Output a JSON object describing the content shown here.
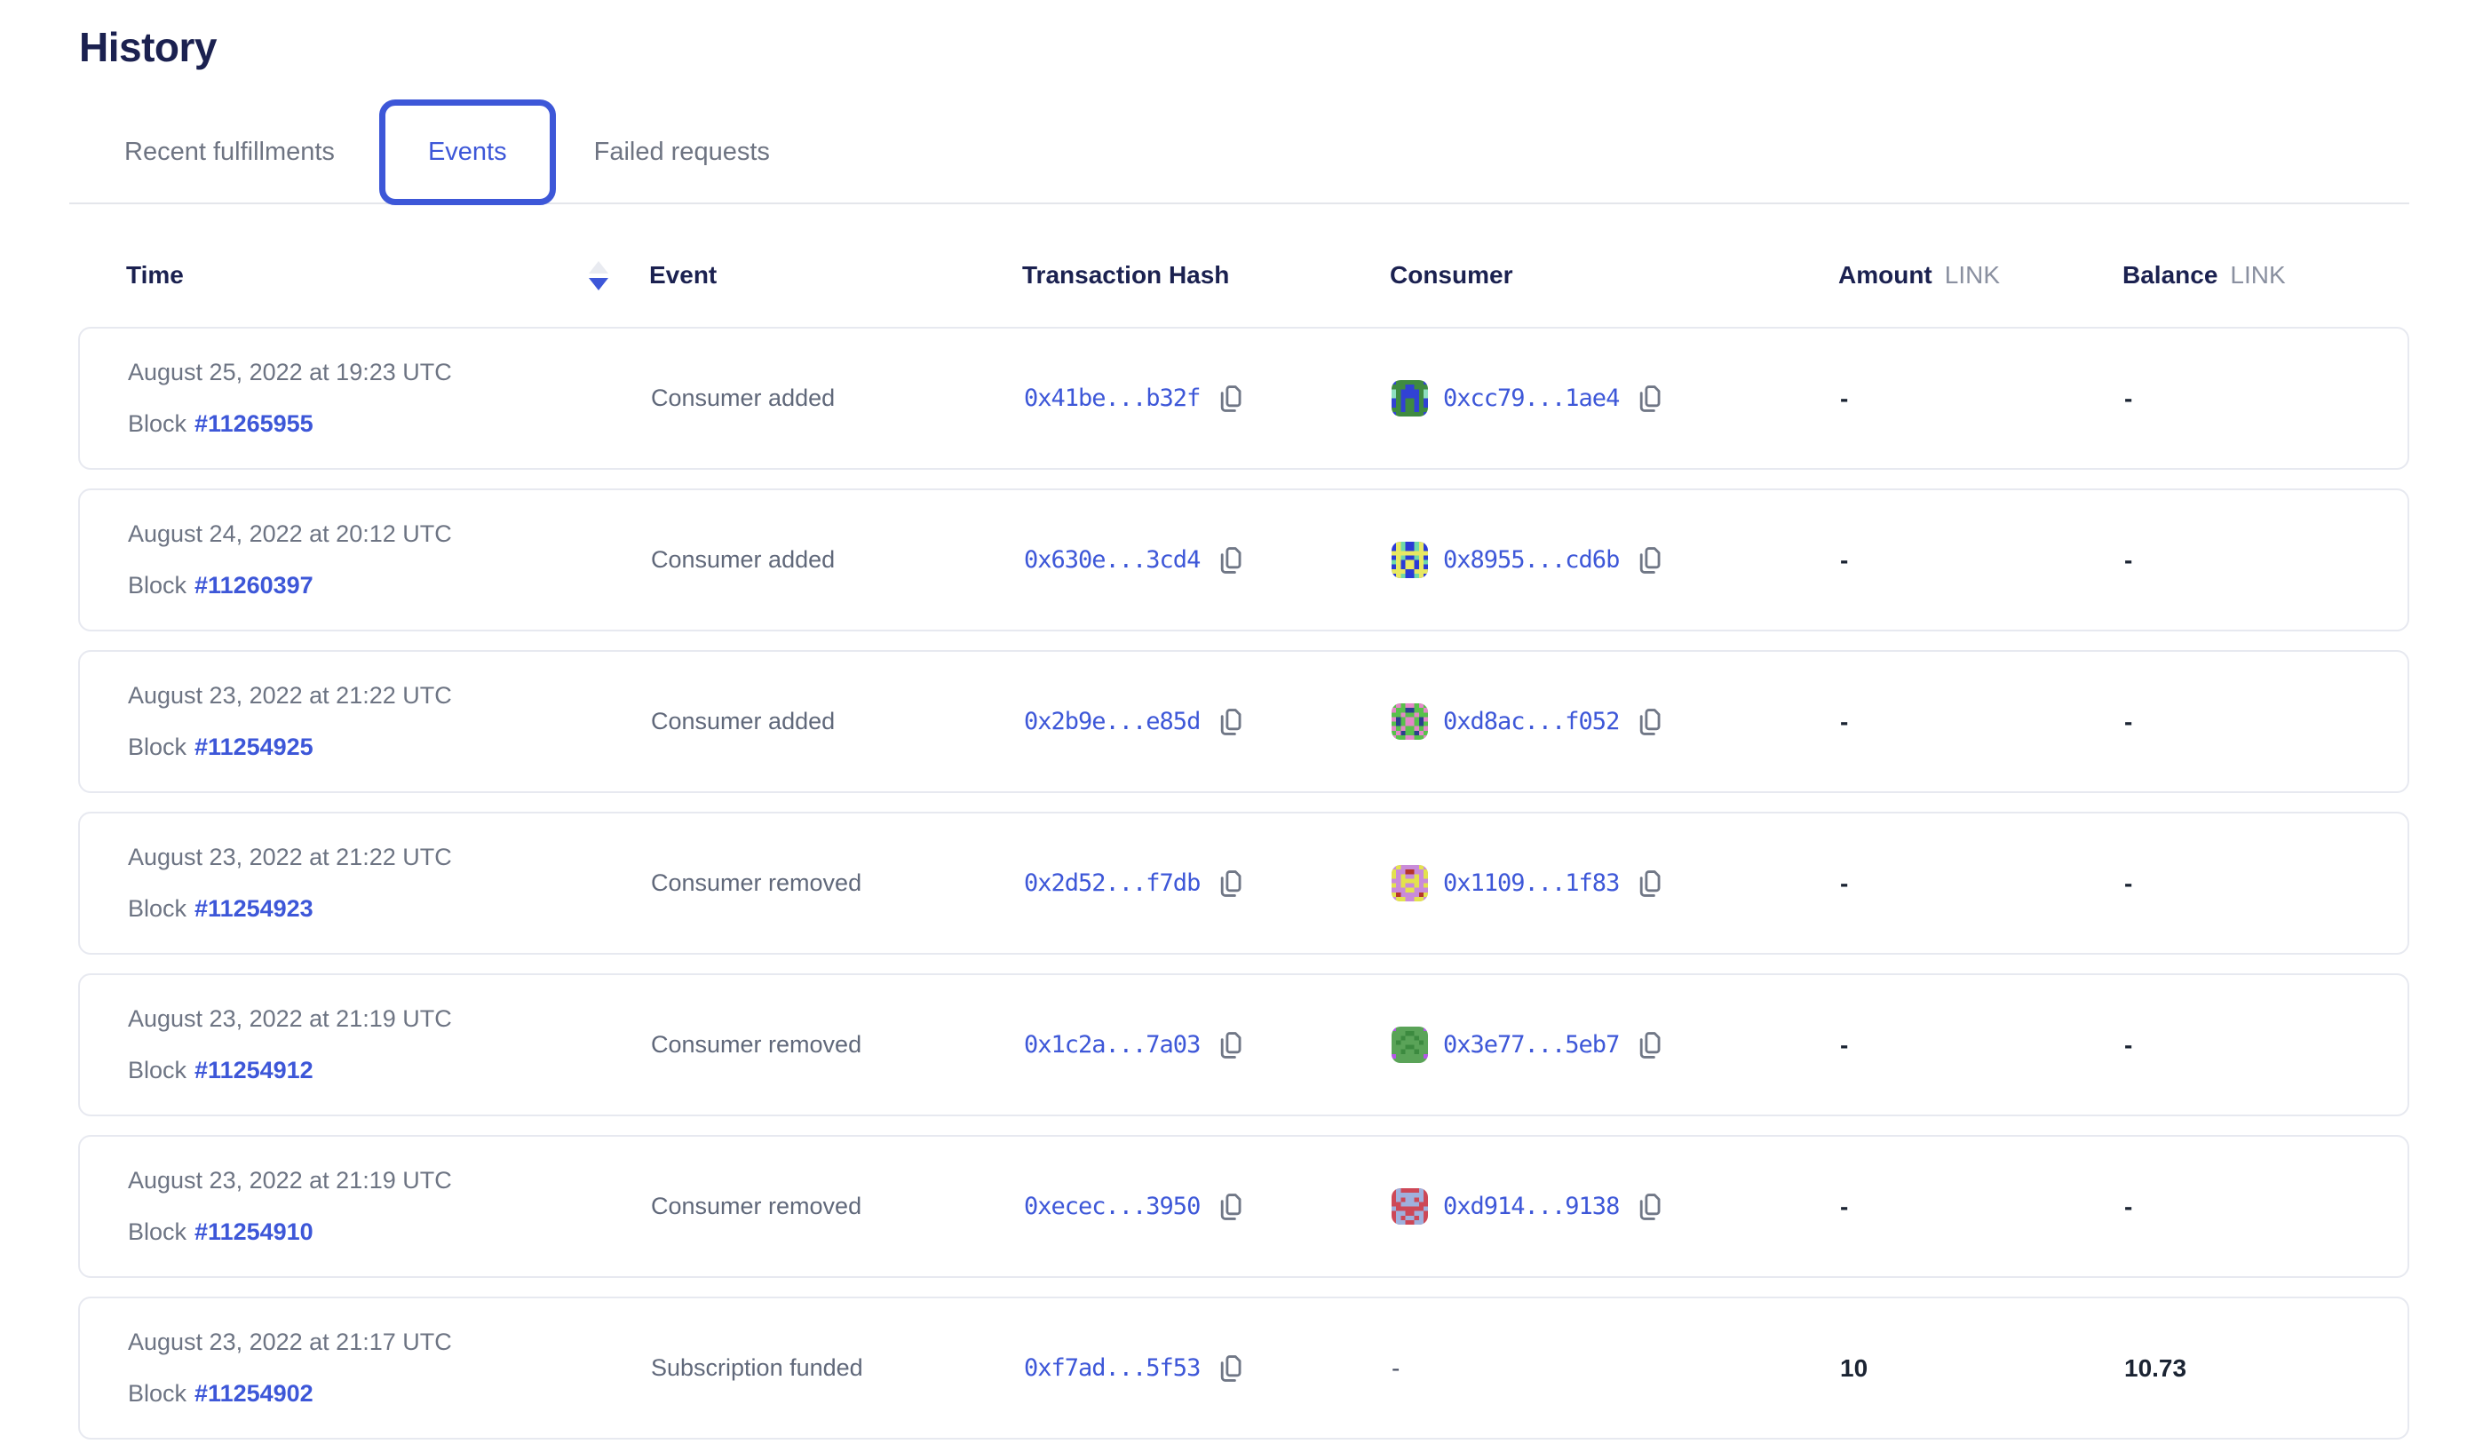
{
  "page": {
    "title": "History"
  },
  "tabs": [
    {
      "label": "Recent fulfillments",
      "active": false
    },
    {
      "label": "Events",
      "active": true
    },
    {
      "label": "Failed requests",
      "active": false
    }
  ],
  "colors": {
    "accent_blue": "#3d57d8",
    "heading_navy": "#1b2150",
    "muted_gray": "#6d7483",
    "card_border": "#e7e9f0"
  },
  "icons": {
    "sort": "sort-toggle-icon (up gray / down blue, descending active)",
    "copy": "copy-icon (two overlapping pages)"
  },
  "table": {
    "columns": {
      "time": "Time",
      "event": "Event",
      "tx": "Transaction Hash",
      "consumer": "Consumer",
      "amount": "Amount",
      "balance": "Balance",
      "unit": "LINK"
    },
    "sort": {
      "column": "Time",
      "direction": "desc"
    },
    "block_label": "Block",
    "rows": [
      {
        "time": "August 25, 2022 at 19:23 UTC",
        "block": "#11265955",
        "event": "Consumer added",
        "tx_hash": "0x41be...b32f",
        "consumer": "0xcc79...1ae4",
        "consumer_avatar": {
          "bg": "#3f8b41",
          "fg": "#3142d4",
          "spot": "#8fdfc0",
          "pattern": [
            "10000001",
            "00011000",
            "20111102",
            "20111102",
            "10100101",
            "10100101",
            "00100100",
            "10000001"
          ]
        },
        "amount": "-",
        "balance": "-"
      },
      {
        "time": "August 24, 2022 at 20:12 UTC",
        "block": "#11260397",
        "event": "Consumer added",
        "tx_hash": "0x630e...3cd4",
        "consumer": "0x8955...cd6b",
        "consumer_avatar": {
          "bg": "#2b3bd6",
          "fg": "#e8e863",
          "spot": "#6fd9a9",
          "pattern": [
            "01200210",
            "01200210",
            "11111111",
            "01200210",
            "21011012",
            "01011010",
            "11100111",
            "01200210"
          ]
        },
        "amount": "-",
        "balance": "-"
      },
      {
        "time": "August 23, 2022 at 21:22 UTC",
        "block": "#11254925",
        "event": "Consumer added",
        "tx_hash": "0x2b9e...e85d",
        "consumer": "0xd8ac...f052",
        "consumer_avatar": {
          "bg": "#58c14b",
          "fg": "#e487c8",
          "spot": "#2b3f8e",
          "pattern": [
            "01011010",
            "10022001",
            "00100100",
            "12011021",
            "02011020",
            "10100101",
            "01200210",
            "10011001"
          ]
        },
        "amount": "-",
        "balance": "-"
      },
      {
        "time": "August 23, 2022 at 21:22 UTC",
        "block": "#11254923",
        "event": "Consumer removed",
        "tx_hash": "0x2d52...f7db",
        "consumer": "0x1109...1f83",
        "consumer_avatar": {
          "bg": "#c98bd9",
          "fg": "#e3e24e",
          "spot": "#b5372a",
          "pattern": [
            "01000010",
            "10022001",
            "10100101",
            "00111100",
            "10100101",
            "00011000",
            "12000021",
            "01100110"
          ]
        },
        "amount": "-",
        "balance": "-"
      },
      {
        "time": "August 23, 2022 at 21:19 UTC",
        "block": "#11254912",
        "event": "Consumer removed",
        "tx_hash": "0x1c2a...7a03",
        "consumer": "0x3e77...5eb7",
        "consumer_avatar": {
          "bg": "#5aa358",
          "fg": "#b556e8",
          "spot": "#3c8a3f",
          "pattern": [
            "10000001",
            "00022000",
            "00200200",
            "02000020",
            "00022000",
            "00200200",
            "10000001",
            "00000000"
          ]
        },
        "amount": "-",
        "balance": "-"
      },
      {
        "time": "August 23, 2022 at 21:19 UTC",
        "block": "#11254910",
        "event": "Consumer removed",
        "tx_hash": "0xecec...3950",
        "consumer": "0xd914...9138",
        "consumer_avatar": {
          "bg": "#cd4857",
          "fg": "#9fb0dd",
          "spot": "#e08894",
          "pattern": [
            "01000010",
            "01111110",
            "01011010",
            "00111100",
            "10000001",
            "01100110",
            "01011010",
            "01100110"
          ]
        },
        "amount": "-",
        "balance": "-"
      },
      {
        "time": "August 23, 2022 at 21:17 UTC",
        "block": "#11254902",
        "event": "Subscription funded",
        "tx_hash": "0xf7ad...5f53",
        "consumer": "-",
        "consumer_avatar": null,
        "amount": "10",
        "balance": "10.73"
      }
    ]
  }
}
